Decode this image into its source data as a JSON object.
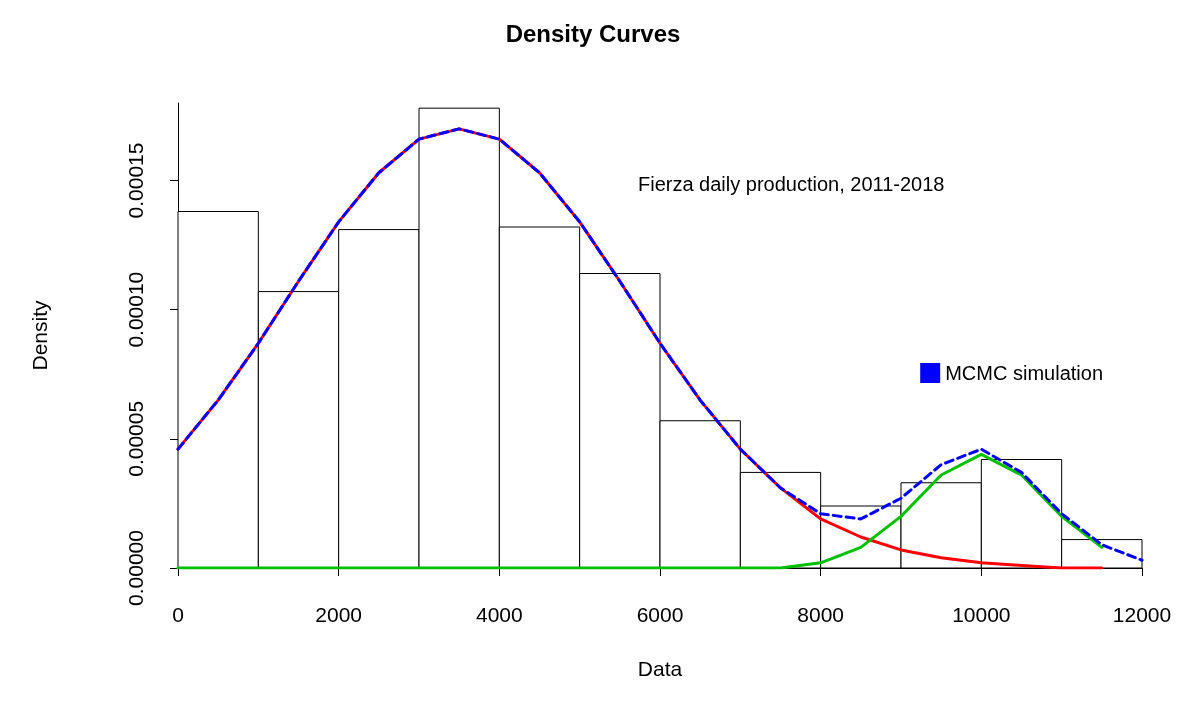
{
  "chart_data": {
    "type": "histogram",
    "title": "Density Curves",
    "xlabel": "Data",
    "ylabel": "Density",
    "annotations": [
      "Fierza daily production, 2011-2018"
    ],
    "bins": [
      0,
      1000,
      2000,
      3000,
      4000,
      5000,
      6000,
      7000,
      8000,
      9000,
      10000,
      11000,
      12000
    ],
    "values": [
      0.000138,
      0.000107,
      0.000131,
      0.000178,
      0.000132,
      0.000114,
      5.7e-05,
      3.7e-05,
      2.4e-05,
      3.3e-05,
      4.2e-05,
      1.1e-05
    ],
    "color": "#ffffff",
    "series": [
      {
        "type": "line",
        "color": "#ff0000",
        "line_style": "solid",
        "x": [
          0,
          500,
          1000,
          1500,
          2000,
          2500,
          3000,
          3500,
          4000,
          4500,
          5000,
          5500,
          6000,
          6500,
          7000,
          7500,
          8000,
          8500,
          9000,
          9500,
          10000,
          10500,
          11000,
          11500
        ],
        "values": [
          4.6e-05,
          6.5e-05,
          8.7e-05,
          0.000111,
          0.000134,
          0.000153,
          0.000166,
          0.00017,
          0.000166,
          0.000153,
          0.000134,
          0.000111,
          8.7e-05,
          6.5e-05,
          4.6e-05,
          3.1e-05,
          1.9e-05,
          1.2e-05,
          7e-06,
          4e-06,
          2e-06,
          1e-06,
          0,
          0
        ]
      },
      {
        "type": "line",
        "color": "#00c000",
        "line_style": "solid",
        "x": [
          0,
          1000,
          2000,
          3000,
          4000,
          5000,
          6000,
          7000,
          7500,
          8000,
          8500,
          9000,
          9500,
          10000,
          10500,
          11000,
          11500
        ],
        "values": [
          0,
          0,
          0,
          0,
          0,
          0,
          0,
          0,
          0,
          2e-06,
          8e-06,
          2e-05,
          3.6e-05,
          4.4e-05,
          3.6e-05,
          2e-05,
          8e-06
        ]
      },
      {
        "type": "line",
        "name": "MCMC simulation",
        "color": "#0000ff",
        "line_style": "dashed",
        "x": [
          0,
          500,
          1000,
          1500,
          2000,
          2500,
          3000,
          3500,
          4000,
          4500,
          5000,
          5500,
          6000,
          6500,
          7000,
          7500,
          8000,
          8500,
          9000,
          9500,
          10000,
          10500,
          11000,
          11500,
          12000
        ],
        "values": [
          4.6e-05,
          6.5e-05,
          8.7e-05,
          0.000111,
          0.000134,
          0.000153,
          0.000166,
          0.00017,
          0.000166,
          0.000153,
          0.000134,
          0.000111,
          8.7e-05,
          6.5e-05,
          4.6e-05,
          3.1e-05,
          2.1e-05,
          1.9e-05,
          2.7e-05,
          4e-05,
          4.6e-05,
          3.7e-05,
          2.1e-05,
          9e-06,
          3e-06
        ]
      }
    ],
    "xlim": [
      0,
      12000
    ],
    "xticks": [
      0,
      2000,
      4000,
      6000,
      8000,
      10000,
      12000
    ],
    "ylim": [
      0,
      0.00018
    ],
    "yticks": [
      {
        "value": 0,
        "label": "0.00000"
      },
      {
        "value": 5e-05,
        "label": "0.00005"
      },
      {
        "value": 0.0001,
        "label": "0.00010"
      },
      {
        "value": 0.00015,
        "label": "0.00015"
      }
    ],
    "grid": false,
    "legend": "right",
    "marker": "none"
  }
}
